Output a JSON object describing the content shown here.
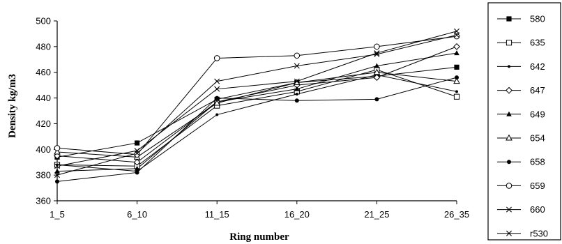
{
  "chart_data": {
    "type": "line",
    "xlabel": "Ring number",
    "ylabel": "Density kg/m3",
    "ylim": [
      360,
      500
    ],
    "yticks": [
      360,
      380,
      400,
      420,
      440,
      460,
      480,
      500
    ],
    "categories": [
      "1_5",
      "6_10",
      "11_15",
      "16_20",
      "21_25",
      "26_35"
    ],
    "grid": false,
    "legend_position": "right",
    "series": [
      {
        "name": "580",
        "marker": "filled-square",
        "values": [
          394,
          405,
          439,
          452,
          457,
          464
        ]
      },
      {
        "name": "635",
        "marker": "open-square",
        "values": [
          388,
          387,
          434,
          445,
          462,
          441
        ]
      },
      {
        "name": "642",
        "marker": "small-dot",
        "values": [
          388,
          383,
          427,
          443,
          458,
          445
        ]
      },
      {
        "name": "647",
        "marker": "open-diamond",
        "values": [
          395,
          390,
          437,
          450,
          456,
          480
        ]
      },
      {
        "name": "649",
        "marker": "filled-triangle",
        "values": [
          383,
          385,
          437,
          447,
          465,
          475
        ]
      },
      {
        "name": "654",
        "marker": "open-triangle",
        "values": [
          398,
          394,
          436,
          452,
          460,
          453
        ]
      },
      {
        "name": "658",
        "marker": "filled-circle",
        "values": [
          375,
          382,
          440,
          438,
          439,
          456
        ]
      },
      {
        "name": "659",
        "marker": "open-circle",
        "values": [
          401,
          396,
          471,
          473,
          480,
          488
        ]
      },
      {
        "name": "660",
        "marker": "x",
        "values": [
          380,
          397,
          453,
          465,
          474,
          489
        ]
      },
      {
        "name": "r530",
        "marker": "x",
        "values": [
          387,
          399,
          447,
          453,
          475,
          492
        ]
      }
    ]
  }
}
